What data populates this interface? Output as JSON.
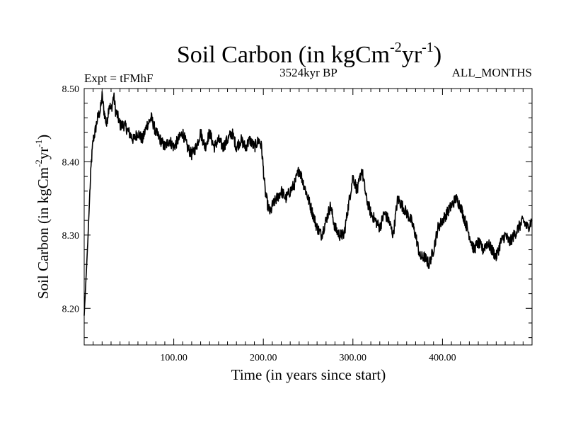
{
  "chart_data": {
    "type": "line",
    "title": {
      "main": "Soil Carbon (in kgCm",
      "sup1": "-2",
      "mid": "yr",
      "sup2": "-1",
      "end": ")"
    },
    "subtitle_left": "Expt = tFMhF",
    "subtitle_center": "3524kyr BP",
    "subtitle_right": "ALL_MONTHS",
    "xlabel": "Time (in years since start)",
    "ylabel": {
      "main": "Soil Carbon (in kgCm",
      "sup1": "-2",
      "mid": "yr",
      "sup2": "-1",
      "end": ")"
    },
    "xlim": [
      0,
      500
    ],
    "ylim": [
      8.15,
      8.5
    ],
    "x_ticks": [
      100,
      200,
      300,
      400
    ],
    "x_tick_labels": [
      "100.00",
      "200.00",
      "300.00",
      "400.00"
    ],
    "y_ticks": [
      8.2,
      8.3,
      8.4,
      8.5
    ],
    "y_tick_labels": [
      "8.20",
      "8.30",
      "8.40",
      "8.50"
    ],
    "grid": false,
    "series": [
      {
        "color": "#000000",
        "x": [
          0,
          2,
          4,
          6,
          8,
          10,
          12,
          15,
          18,
          20,
          22,
          25,
          28,
          30,
          33,
          35,
          38,
          40,
          45,
          50,
          55,
          60,
          65,
          70,
          75,
          80,
          85,
          90,
          95,
          100,
          105,
          110,
          115,
          120,
          125,
          130,
          135,
          140,
          145,
          150,
          155,
          160,
          165,
          170,
          175,
          180,
          185,
          190,
          195,
          198,
          200,
          202,
          205,
          208,
          210,
          215,
          220,
          225,
          230,
          235,
          240,
          245,
          250,
          255,
          260,
          265,
          270,
          275,
          280,
          285,
          290,
          295,
          300,
          305,
          310,
          315,
          320,
          325,
          330,
          335,
          340,
          345,
          350,
          355,
          360,
          365,
          370,
          375,
          380,
          385,
          390,
          395,
          400,
          405,
          410,
          415,
          420,
          425,
          430,
          435,
          440,
          445,
          450,
          455,
          460,
          465,
          470,
          475,
          480,
          485,
          490,
          495,
          500
        ],
        "y": [
          8.19,
          8.24,
          8.29,
          8.35,
          8.4,
          8.43,
          8.44,
          8.46,
          8.47,
          8.49,
          8.47,
          8.45,
          8.48,
          8.47,
          8.49,
          8.47,
          8.46,
          8.45,
          8.45,
          8.44,
          8.43,
          8.44,
          8.43,
          8.45,
          8.46,
          8.44,
          8.43,
          8.42,
          8.43,
          8.42,
          8.43,
          8.44,
          8.42,
          8.41,
          8.42,
          8.44,
          8.42,
          8.44,
          8.42,
          8.43,
          8.42,
          8.43,
          8.44,
          8.42,
          8.43,
          8.42,
          8.43,
          8.42,
          8.43,
          8.42,
          8.39,
          8.36,
          8.34,
          8.33,
          8.34,
          8.35,
          8.36,
          8.35,
          8.36,
          8.37,
          8.39,
          8.37,
          8.35,
          8.33,
          8.31,
          8.3,
          8.32,
          8.34,
          8.31,
          8.3,
          8.3,
          8.34,
          8.38,
          8.36,
          8.39,
          8.35,
          8.33,
          8.32,
          8.31,
          8.33,
          8.32,
          8.3,
          8.35,
          8.34,
          8.33,
          8.32,
          8.3,
          8.27,
          8.27,
          8.26,
          8.28,
          8.31,
          8.32,
          8.33,
          8.34,
          8.35,
          8.34,
          8.32,
          8.3,
          8.28,
          8.29,
          8.28,
          8.29,
          8.28,
          8.27,
          8.29,
          8.3,
          8.29,
          8.3,
          8.31,
          8.32,
          8.31,
          8.32
        ]
      }
    ]
  }
}
